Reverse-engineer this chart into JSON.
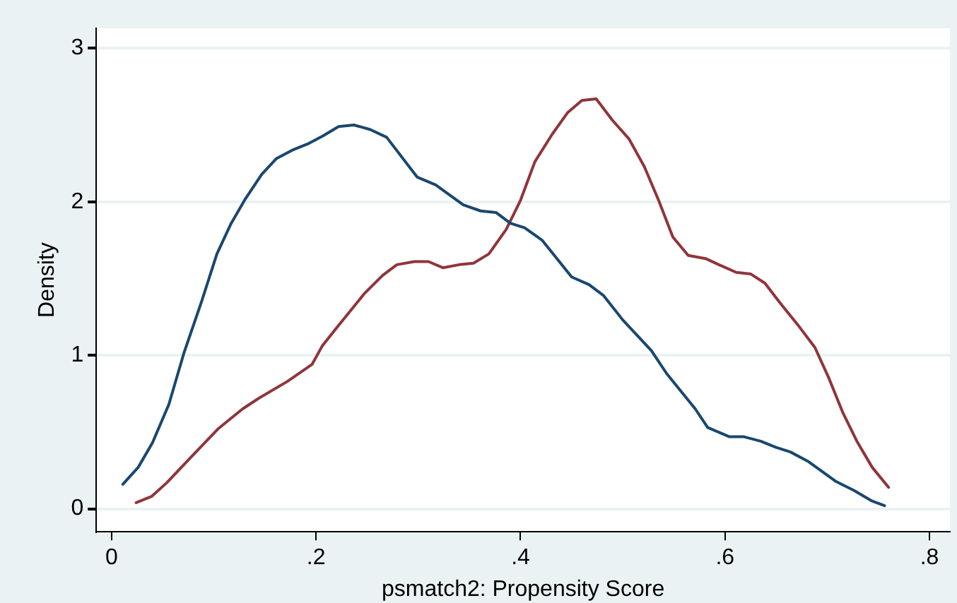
{
  "chart_data": {
    "type": "line",
    "xlabel": "psmatch2: Propensity Score",
    "ylabel": "Density",
    "xlim": [
      -0.015,
      0.82
    ],
    "xticks": [
      {
        "value": 0,
        "label": "0"
      },
      {
        "value": 0.2,
        "label": ".2"
      },
      {
        "value": 0.4,
        "label": ".4"
      },
      {
        "value": 0.6,
        "label": ".6"
      },
      {
        "value": 0.8,
        "label": ".8"
      }
    ],
    "ylim": [
      -0.15,
      3.13
    ],
    "yticks": [
      0,
      1,
      2,
      3
    ],
    "grid": "y",
    "legend": false,
    "series": [
      {
        "color": "#1a476f",
        "x": [
          0.011,
          0.026,
          0.04,
          0.056,
          0.071,
          0.088,
          0.103,
          0.117,
          0.131,
          0.147,
          0.161,
          0.178,
          0.193,
          0.207,
          0.222,
          0.237,
          0.253,
          0.269,
          0.299,
          0.317,
          0.344,
          0.361,
          0.376,
          0.39,
          0.404,
          0.421,
          0.45,
          0.467,
          0.481,
          0.5,
          0.528,
          0.543,
          0.571,
          0.583,
          0.604,
          0.618,
          0.635,
          0.65,
          0.664,
          0.681,
          0.708,
          0.726,
          0.744,
          0.756
        ],
        "values": [
          0.16,
          0.27,
          0.43,
          0.68,
          1.02,
          1.35,
          1.66,
          1.86,
          2.02,
          2.18,
          2.28,
          2.34,
          2.38,
          2.43,
          2.49,
          2.5,
          2.47,
          2.42,
          2.16,
          2.11,
          1.98,
          1.94,
          1.93,
          1.86,
          1.83,
          1.75,
          1.51,
          1.46,
          1.39,
          1.23,
          1.03,
          0.88,
          0.65,
          0.53,
          0.47,
          0.47,
          0.44,
          0.4,
          0.37,
          0.31,
          0.18,
          0.12,
          0.05,
          0.02
        ]
      },
      {
        "color": "#90353b",
        "x": [
          0.024,
          0.039,
          0.054,
          0.081,
          0.104,
          0.128,
          0.144,
          0.172,
          0.196,
          0.206,
          0.219,
          0.247,
          0.265,
          0.279,
          0.296,
          0.31,
          0.324,
          0.34,
          0.354,
          0.369,
          0.386,
          0.4,
          0.414,
          0.431,
          0.446,
          0.46,
          0.474,
          0.49,
          0.506,
          0.521,
          0.535,
          0.549,
          0.564,
          0.581,
          0.594,
          0.611,
          0.625,
          0.639,
          0.654,
          0.671,
          0.688,
          0.701,
          0.715,
          0.729,
          0.744,
          0.76
        ],
        "values": [
          0.04,
          0.08,
          0.17,
          0.36,
          0.52,
          0.65,
          0.72,
          0.83,
          0.94,
          1.06,
          1.17,
          1.4,
          1.52,
          1.59,
          1.61,
          1.61,
          1.57,
          1.59,
          1.6,
          1.66,
          1.82,
          2.01,
          2.26,
          2.44,
          2.58,
          2.66,
          2.67,
          2.53,
          2.41,
          2.23,
          2.01,
          1.77,
          1.65,
          1.63,
          1.59,
          1.54,
          1.53,
          1.47,
          1.34,
          1.2,
          1.05,
          0.86,
          0.63,
          0.44,
          0.27,
          0.14
        ]
      }
    ]
  }
}
